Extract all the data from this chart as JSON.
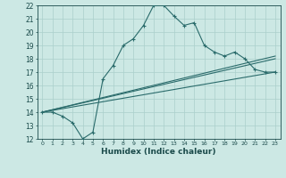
{
  "xlabel": "Humidex (Indice chaleur)",
  "ylabel": "",
  "xlim": [
    -0.5,
    23.5
  ],
  "ylim": [
    12,
    22
  ],
  "xticks": [
    0,
    1,
    2,
    3,
    4,
    5,
    6,
    7,
    8,
    9,
    10,
    11,
    12,
    13,
    14,
    15,
    16,
    17,
    18,
    19,
    20,
    21,
    22,
    23
  ],
  "yticks": [
    12,
    13,
    14,
    15,
    16,
    17,
    18,
    19,
    20,
    21,
    22
  ],
  "bg_color": "#cce8e4",
  "line_color": "#2a6b6b",
  "grid_color": "#aacfcb",
  "line1_x": [
    0,
    1,
    2,
    3,
    4,
    5,
    6,
    7,
    8,
    9,
    10,
    11,
    12,
    13,
    14,
    15,
    16,
    17,
    18,
    19,
    20,
    21,
    22,
    23
  ],
  "line1_y": [
    14.0,
    14.0,
    13.7,
    13.2,
    12.0,
    12.5,
    16.5,
    17.5,
    19.0,
    19.5,
    20.5,
    22.0,
    22.0,
    21.2,
    20.5,
    20.7,
    19.0,
    18.5,
    18.2,
    18.5,
    18.0,
    17.2,
    17.0,
    17.0
  ],
  "line2_x": [
    0,
    23
  ],
  "line2_y": [
    14.0,
    17.0
  ],
  "line3_x": [
    0,
    23
  ],
  "line3_y": [
    14.0,
    18.0
  ],
  "line4_x": [
    0,
    23
  ],
  "line4_y": [
    14.0,
    18.2
  ]
}
